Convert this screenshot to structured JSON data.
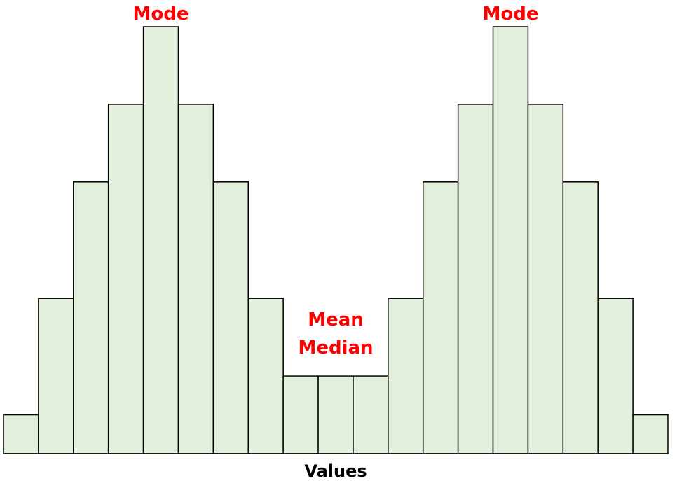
{
  "chart_data": {
    "type": "bar",
    "title": "",
    "xlabel": "Values",
    "ylabel": "",
    "ylim": [
      0,
      11
    ],
    "grid": false,
    "values": [
      1,
      4,
      7,
      9,
      11,
      9,
      7,
      4,
      2,
      2,
      2,
      4,
      7,
      9,
      11,
      9,
      7,
      4,
      1
    ],
    "annotations": [
      {
        "text": "Mode",
        "at_bar": 4
      },
      {
        "text": "Mode",
        "at_bar": 14
      },
      {
        "text": "Mean",
        "at_bar": 9,
        "line": 0
      },
      {
        "text": "Median",
        "at_bar": 9,
        "line": 1
      }
    ],
    "colors": {
      "bar_fill": "#e2efda",
      "bar_stroke": "#000000",
      "annotation": "#ff0000"
    }
  }
}
